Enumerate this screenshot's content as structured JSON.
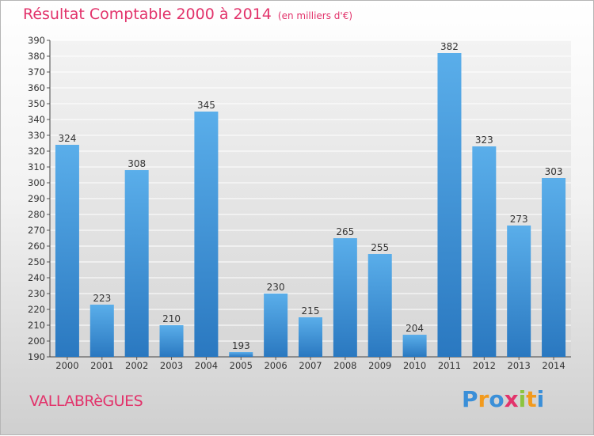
{
  "title": "Résultat Comptable 2000 à 2014",
  "subtitle": "(en milliers d'€)",
  "commune": "VALLABRèGUES",
  "logo": {
    "letters": [
      "P",
      "r",
      "o",
      "x",
      "i",
      "t",
      "i"
    ],
    "colors": [
      "#3a8fd8",
      "#f29a1d",
      "#3a8fd8",
      "#e2336b",
      "#8cc43f",
      "#f29a1d",
      "#3a8fd8"
    ]
  },
  "colors": {
    "bar": "#3d95dc",
    "accent": "#e2336b"
  },
  "chart_data": {
    "type": "bar",
    "categories": [
      "2000",
      "2001",
      "2002",
      "2003",
      "2004",
      "2005",
      "2006",
      "2007",
      "2008",
      "2009",
      "2010",
      "2011",
      "2012",
      "2013",
      "2014"
    ],
    "values": [
      324,
      223,
      308,
      210,
      345,
      193,
      230,
      215,
      265,
      255,
      204,
      382,
      323,
      273,
      303
    ],
    "title": "Résultat Comptable 2000 à 2014",
    "xlabel": "",
    "ylabel": "",
    "ylim": [
      190,
      390
    ],
    "yticks": [
      190,
      200,
      210,
      220,
      230,
      240,
      250,
      260,
      270,
      280,
      290,
      300,
      310,
      320,
      330,
      340,
      350,
      360,
      370,
      380,
      390
    ],
    "grid": true
  }
}
